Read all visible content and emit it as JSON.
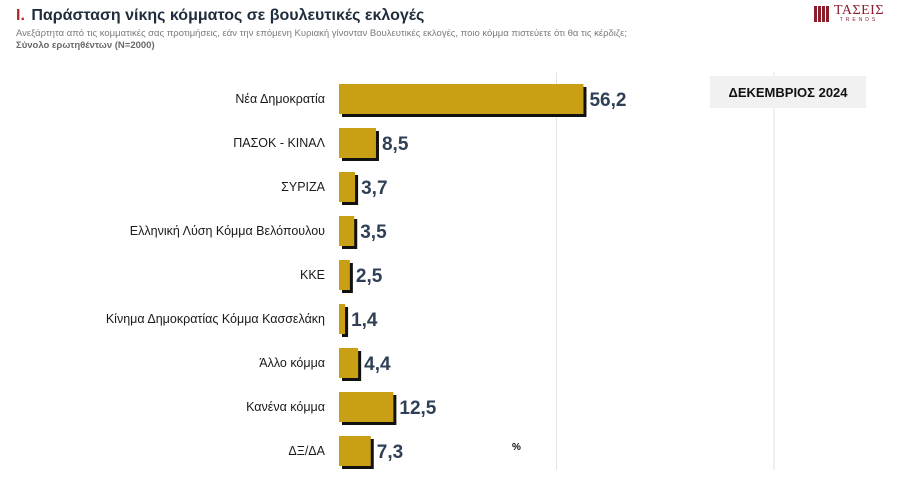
{
  "header": {
    "title_prefix": "I.",
    "title": "Παράσταση νίκης κόμματος σε βουλευτικές εκλογές",
    "subtitle": "Ανεξάρτητα από τις κομματικές σας προτιμήσεις, εάν την επόμενη Κυριακή γίνονταν Βουλευτικές εκλογές, ποιο κόμμα πιστεύετε ότι θα τις κέρδιζε;",
    "sample": "Σύνολο ερωτηθέντων (N=2000)"
  },
  "logo": {
    "main": "ΤΑΣΕΙΣ",
    "sub": "TRENDS"
  },
  "period_label": "ΔΕΚΕΜΒΡΙΟΣ 2024",
  "unit_label": "%",
  "colors": {
    "bar": "#c9a014",
    "bar_shadow": "#111111",
    "value_text": "#2f3f55",
    "grid": "#e2e2e2"
  },
  "chart_data": {
    "type": "bar",
    "orientation": "horizontal",
    "categories": [
      "Νέα Δημοκρατία",
      "ΠΑΣΟΚ - ΚΙΝΑΛ",
      "ΣΥΡΙΖΑ",
      "Ελληνική Λύση Κόμμα Βελόπουλου",
      "ΚΚΕ",
      "Κίνημα Δημοκρατίας Κόμμα Κασσελάκη",
      "Άλλο κόμμα",
      "Κανένα κόμμα",
      "ΔΞ/ΔΑ"
    ],
    "values": [
      56.2,
      8.5,
      3.7,
      3.5,
      2.5,
      1.4,
      4.4,
      12.5,
      7.3
    ],
    "value_labels": [
      "56,2",
      "8,5",
      "3,7",
      "3,5",
      "2,5",
      "1,4",
      "4,4",
      "12,5",
      "7,3"
    ],
    "xlim": [
      0,
      100
    ],
    "grid": true
  }
}
